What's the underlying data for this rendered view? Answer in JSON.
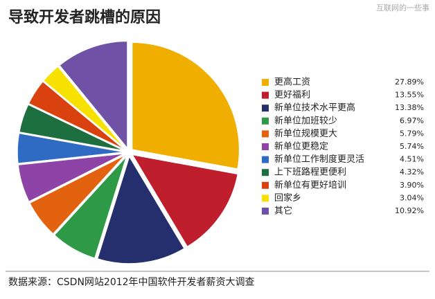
{
  "chart_data": {
    "type": "pie",
    "title": "导致开发者跳槽的原因",
    "watermark": "互联网的一些事",
    "source": "数据来源：CSDN网站2012年中国软件开发者薪资大调查",
    "categories": [
      "更高工资",
      "更好福利",
      "新单位技术水平更高",
      "新单位加班较少",
      "新单位规模更大",
      "新单位更稳定",
      "新单位工作制度更灵活",
      "上下班路程更便利",
      "新单位有更好培训",
      "回家乡",
      "其它"
    ],
    "values": [
      27.89,
      13.55,
      13.38,
      6.97,
      5.79,
      5.74,
      4.51,
      4.32,
      3.9,
      3.04,
      10.92
    ],
    "value_labels": [
      "27.89%",
      "13.55%",
      "13.38%",
      "6.97%",
      "5.79%",
      "5.74%",
      "4.51%",
      "4.32%",
      "3.90%",
      "3.04%",
      "10.92%"
    ],
    "colors": [
      "#efae00",
      "#bf1e2d",
      "#262f6e",
      "#2e9a48",
      "#e2620f",
      "#8d44a6",
      "#2f6bc3",
      "#1e6f3f",
      "#d9420f",
      "#f7e100",
      "#6f52a6"
    ],
    "legend": "right"
  }
}
